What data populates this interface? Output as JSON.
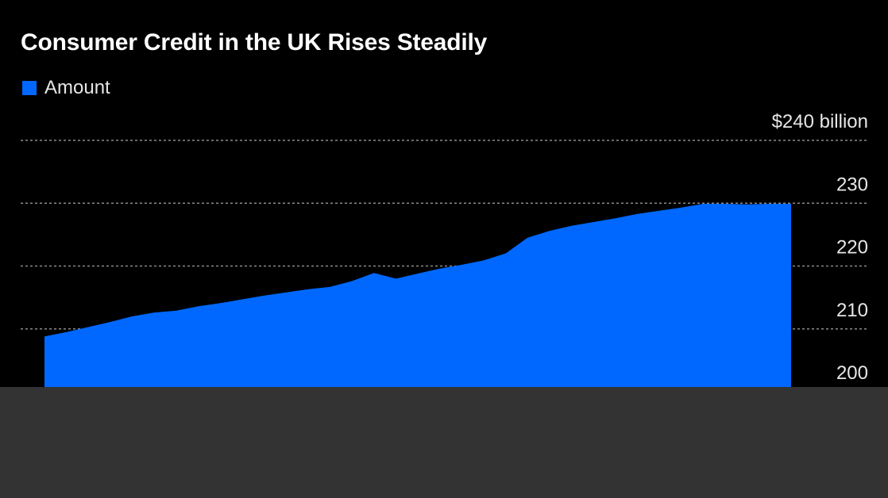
{
  "colors": {
    "background": "#000000",
    "series": "#0068ff",
    "grid": "#8a8a8a",
    "text": "#e6e6e6",
    "title": "#ffffff",
    "overlay": "#333333"
  },
  "chart_data": {
    "type": "area",
    "title": "Consumer Credit in the UK Rises Steadily",
    "xlabel": "",
    "ylabel": "",
    "ylim": [
      200,
      240
    ],
    "y_ticks": [
      {
        "value": 240,
        "label": "$240 billion"
      },
      {
        "value": 230,
        "label": "230"
      },
      {
        "value": 220,
        "label": "220"
      },
      {
        "value": 210,
        "label": "210"
      },
      {
        "value": 200,
        "label": "200"
      }
    ],
    "grid": true,
    "legend_position": "top-left",
    "series": [
      {
        "name": "Amount",
        "color": "#0068ff",
        "values": [
          208.8,
          209.5,
          210.3,
          211.1,
          212.0,
          212.6,
          212.9,
          213.6,
          214.1,
          214.7,
          215.3,
          215.8,
          216.3,
          216.7,
          217.6,
          218.9,
          218.0,
          218.8,
          219.6,
          220.2,
          220.9,
          222.0,
          224.5,
          225.6,
          226.4,
          227.0,
          227.6,
          228.3,
          228.8,
          229.3,
          229.9,
          229.9,
          229.8,
          229.9,
          229.9
        ]
      }
    ]
  }
}
